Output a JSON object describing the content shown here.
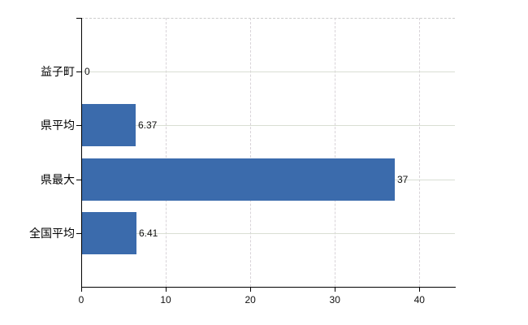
{
  "chart_data": {
    "type": "bar",
    "orientation": "horizontal",
    "title": "",
    "xlabel": "",
    "ylabel": "",
    "categories": [
      "益子町",
      "県平均",
      "県最大",
      "全国平均"
    ],
    "values": [
      0,
      6.37,
      37,
      6.41
    ],
    "value_labels": [
      "0",
      "6.37",
      "37",
      "6.41"
    ],
    "x_ticks": [
      0,
      10,
      20,
      30,
      40
    ],
    "x_tick_labels": [
      "0",
      "10",
      "20",
      "30",
      "40"
    ],
    "xlim": [
      0,
      44.2
    ],
    "grid": true,
    "legend": "none"
  },
  "colors": {
    "background": "#ffffff",
    "bar": "#3b6bac",
    "axis": "#000000",
    "h_grid": "#d9ded3",
    "v_grid": "#d8d3d8",
    "top_border": "#cccccc",
    "text": "#111111"
  }
}
